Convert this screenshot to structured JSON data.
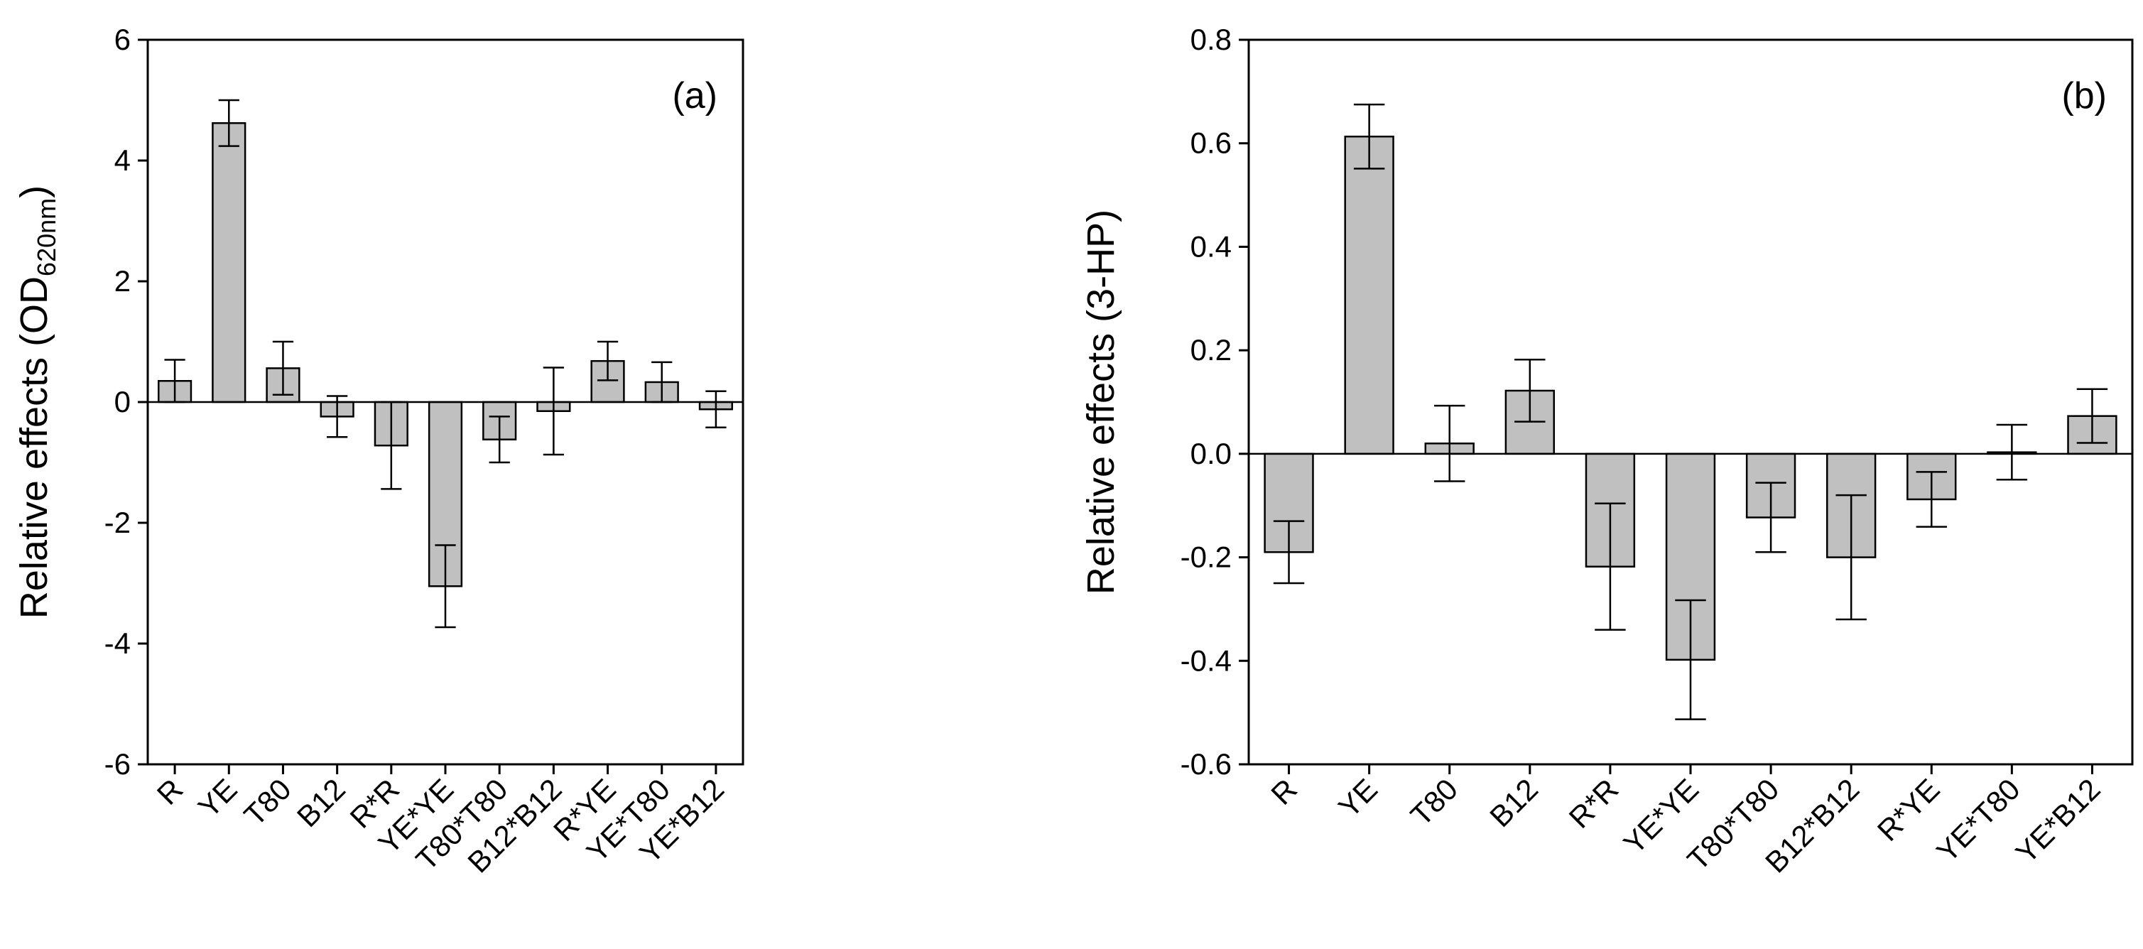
{
  "chart_data": [
    {
      "type": "bar",
      "panel_label": "(a)",
      "ylabel": "Relative effects (OD",
      "ylabel_sub": "620nm",
      "ylabel_end": ")",
      "xlabel": "",
      "categories": [
        "R",
        "YE",
        "T80",
        "B12",
        "R*R",
        "YE*YE",
        "T80*T80",
        "B12*B12",
        "R*YE",
        "YE*T80",
        "YE*B12"
      ],
      "values": [
        0.35,
        4.62,
        0.56,
        -0.24,
        -0.72,
        -3.05,
        -0.62,
        -0.15,
        0.68,
        0.33,
        -0.12
      ],
      "errors": [
        0.35,
        0.38,
        0.44,
        0.34,
        0.72,
        0.68,
        0.38,
        0.72,
        0.32,
        0.33,
        0.3
      ],
      "ylim": [
        -6,
        6
      ],
      "yticks": [
        "-6",
        "-4",
        "-2",
        "0",
        "2",
        "4",
        "6"
      ],
      "ytick_values": [
        -6,
        -4,
        -2,
        0,
        2,
        4,
        6
      ],
      "bar_color": "#c0c0c0",
      "grid": false,
      "legend": "none"
    },
    {
      "type": "bar",
      "panel_label": "(b)",
      "ylabel": "Relative effects (3-HP)",
      "xlabel": "",
      "categories": [
        "R",
        "YE",
        "T80",
        "B12",
        "R*R",
        "YE*YE",
        "T80*T80",
        "B12*B12",
        "R*YE",
        "YE*T80",
        "YE*B12"
      ],
      "values": [
        -0.19,
        0.613,
        0.02,
        0.122,
        -0.218,
        -0.398,
        -0.123,
        -0.2,
        -0.088,
        0.003,
        0.073
      ],
      "errors": [
        0.06,
        0.062,
        0.073,
        0.06,
        0.122,
        0.115,
        0.067,
        0.12,
        0.053,
        0.053,
        0.052
      ],
      "ylim": [
        -0.6,
        0.8
      ],
      "yticks": [
        "-0.6",
        "-0.4",
        "-0.2",
        "0.0",
        "0.2",
        "0.4",
        "0.6",
        "0.8"
      ],
      "ytick_values": [
        -0.6,
        -0.4,
        -0.2,
        0.0,
        0.2,
        0.4,
        0.6,
        0.8
      ],
      "bar_color": "#c0c0c0",
      "grid": false,
      "legend": "none"
    }
  ]
}
